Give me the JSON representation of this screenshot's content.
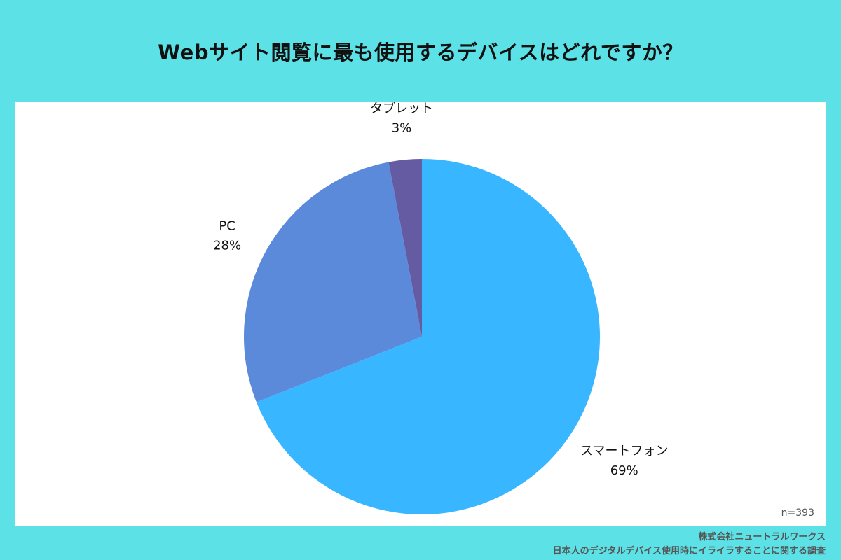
{
  "title": "Webサイト閲覧に最も使用するデバイスはどれですか？",
  "sample_size": "n=393",
  "footer": {
    "company": "株式会社ニュートラルワークス",
    "survey": "日本人のデジタルデバイス使用時にイライラすることに関する調査"
  },
  "chart_data": {
    "type": "pie",
    "title": "Webサイト閲覧に最も使用するデバイスはどれですか？",
    "start": "12 o'clock, clockwise",
    "slices": [
      {
        "label": "スマートフォン",
        "value": 69,
        "value_label": "69%",
        "color": "#38B6FF"
      },
      {
        "label": "PC",
        "value": 28,
        "value_label": "28%",
        "color": "#5B8ADA"
      },
      {
        "label": "タブレット",
        "value": 3,
        "value_label": "3%",
        "color": "#655BA2"
      }
    ]
  }
}
